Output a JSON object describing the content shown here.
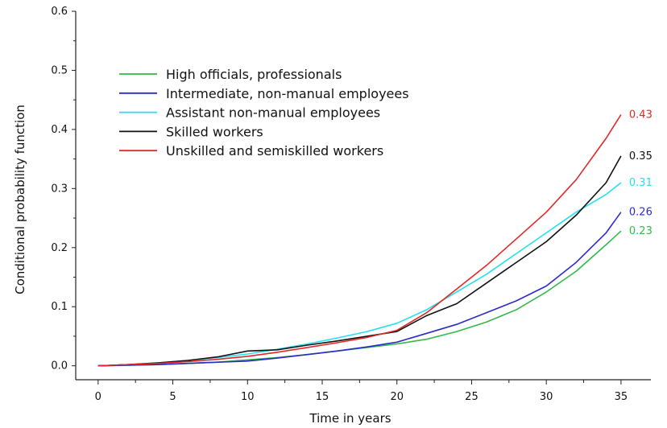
{
  "chart_data": {
    "type": "line",
    "title": "",
    "xlabel": "Time in years",
    "ylabel": "Conditional probability function",
    "xlim": [
      -1.5,
      37
    ],
    "ylim": [
      -0.01,
      0.6
    ],
    "x_ticks": [
      0,
      5,
      10,
      15,
      20,
      25,
      30,
      35
    ],
    "x_tick_labels": [
      "0",
      "5",
      "10",
      "15",
      "20",
      "25",
      "30",
      "35"
    ],
    "y_ticks": [
      0.0,
      0.1,
      0.2,
      0.3,
      0.4,
      0.5,
      0.6
    ],
    "y_tick_labels": [
      "0.0",
      "0.1",
      "0.2",
      "0.3",
      "0.4",
      "0.5",
      "0.6"
    ],
    "grid": false,
    "legend_position": "top-left",
    "series": [
      {
        "name": "High officials, professionals",
        "color": "#33b84a",
        "end_label": "0.23",
        "x": [
          0,
          2,
          4,
          6,
          8,
          10,
          12,
          14,
          16,
          18,
          20,
          22,
          24,
          26,
          28,
          30,
          32,
          34,
          35
        ],
        "y": [
          0,
          0.001,
          0.002,
          0.004,
          0.006,
          0.01,
          0.014,
          0.019,
          0.025,
          0.031,
          0.037,
          0.045,
          0.058,
          0.074,
          0.095,
          0.125,
          0.16,
          0.205,
          0.228
        ]
      },
      {
        "name": "Intermediate, non-manual employees",
        "color": "#2b2bc8",
        "end_label": "0.26",
        "x": [
          0,
          2,
          4,
          6,
          8,
          10,
          12,
          14,
          16,
          18,
          20,
          22,
          24,
          26,
          28,
          30,
          32,
          34,
          35
        ],
        "y": [
          0,
          0.001,
          0.002,
          0.004,
          0.006,
          0.008,
          0.013,
          0.019,
          0.025,
          0.032,
          0.04,
          0.055,
          0.07,
          0.09,
          0.11,
          0.135,
          0.175,
          0.225,
          0.26
        ]
      },
      {
        "name": "Assistant non-manual employees",
        "color": "#22e0f0",
        "end_label": "0.31",
        "x": [
          0,
          2,
          4,
          6,
          8,
          10,
          12,
          14,
          16,
          18,
          20,
          22,
          24,
          26,
          28,
          30,
          32,
          34,
          35
        ],
        "y": [
          0,
          0.002,
          0.005,
          0.009,
          0.014,
          0.02,
          0.028,
          0.037,
          0.047,
          0.058,
          0.072,
          0.095,
          0.125,
          0.155,
          0.19,
          0.225,
          0.26,
          0.29,
          0.31
        ]
      },
      {
        "name": "Skilled workers",
        "color": "#111111",
        "end_label": "0.35",
        "x": [
          0,
          2,
          4,
          6,
          8,
          10,
          12,
          14,
          16,
          18,
          20,
          22,
          24,
          26,
          28,
          30,
          32,
          34,
          35
        ],
        "y": [
          0,
          0.002,
          0.005,
          0.009,
          0.015,
          0.025,
          0.027,
          0.035,
          0.042,
          0.05,
          0.058,
          0.085,
          0.105,
          0.14,
          0.175,
          0.21,
          0.255,
          0.31,
          0.355
        ]
      },
      {
        "name": "Unskilled and semiskilled workers",
        "color": "#e02828",
        "end_label": "0.43",
        "x": [
          0,
          2,
          4,
          6,
          8,
          10,
          12,
          14,
          16,
          18,
          20,
          22,
          24,
          26,
          28,
          30,
          32,
          34,
          35
        ],
        "y": [
          0,
          0.002,
          0.004,
          0.007,
          0.011,
          0.016,
          0.023,
          0.031,
          0.039,
          0.048,
          0.06,
          0.09,
          0.13,
          0.17,
          0.215,
          0.26,
          0.315,
          0.385,
          0.425
        ]
      }
    ]
  }
}
